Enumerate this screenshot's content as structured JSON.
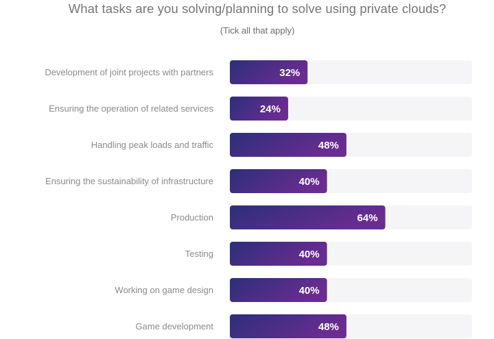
{
  "chart_data": {
    "type": "bar",
    "orientation": "horizontal",
    "title": "What tasks are you solving/planning to solve using private clouds?",
    "subtitle": "(Tick all that apply)",
    "categories": [
      "Development of joint projects with partners",
      "Ensuring the operation of related services",
      "Handling peak loads and traffic",
      "Ensuring the sustainability of infrastructure",
      "Production",
      "Testing",
      "Working on game design",
      "Game development"
    ],
    "values": [
      32,
      24,
      48,
      40,
      64,
      40,
      40,
      48
    ],
    "value_labels": [
      "32%",
      "24%",
      "48%",
      "40%",
      "64%",
      "40%",
      "40%",
      "48%"
    ],
    "unit": "%",
    "xlim": [
      0,
      100
    ],
    "grid": false,
    "legend": "none",
    "colors": {
      "bar_start": "#2c2f7a",
      "bar_end": "#6a2c91",
      "track": "#f5f5f7",
      "category_text": "#8a8a8a",
      "value_text": "#ffffff"
    }
  }
}
